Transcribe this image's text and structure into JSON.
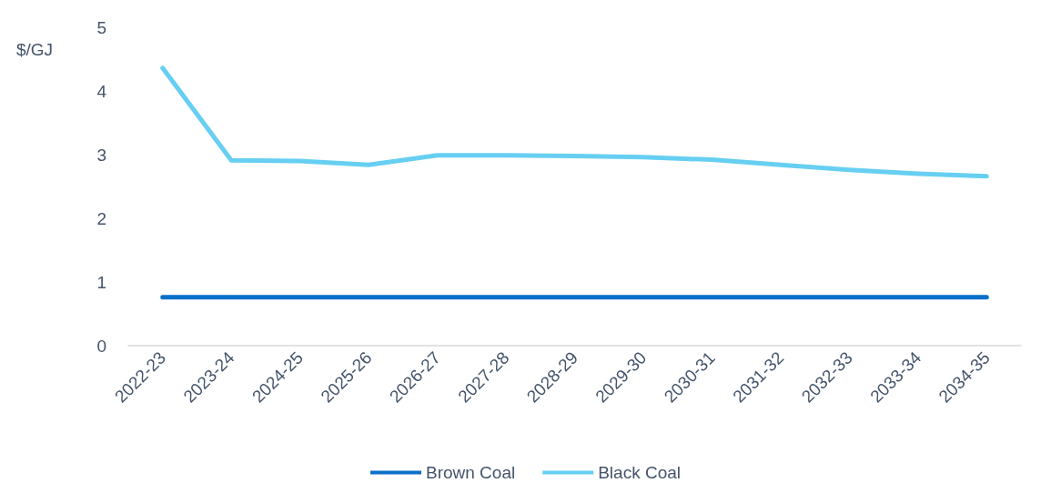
{
  "chart_data": {
    "type": "line",
    "ylabel": "$/GJ",
    "categories": [
      "2022-23",
      "2023-24",
      "2024-25",
      "2025-26",
      "2026-27",
      "2027-28",
      "2028-29",
      "2029-30",
      "2030-31",
      "2031-32",
      "2032-33",
      "2033-34",
      "2034-35"
    ],
    "series": [
      {
        "name": "Brown Coal",
        "color": "#0a6fc9",
        "values": [
          0.76,
          0.76,
          0.76,
          0.76,
          0.76,
          0.76,
          0.76,
          0.76,
          0.76,
          0.76,
          0.76,
          0.76,
          0.76
        ]
      },
      {
        "name": "Black Coal",
        "color": "#66cff2",
        "values": [
          4.36,
          2.91,
          2.9,
          2.84,
          2.99,
          2.99,
          2.98,
          2.96,
          2.92,
          2.84,
          2.76,
          2.7,
          2.66
        ]
      }
    ],
    "ylim": [
      0,
      5
    ],
    "yticks": [
      0,
      1,
      2,
      3,
      4,
      5
    ],
    "grid": false,
    "legend": "bottom",
    "marker": "none",
    "line_style": "solid"
  }
}
